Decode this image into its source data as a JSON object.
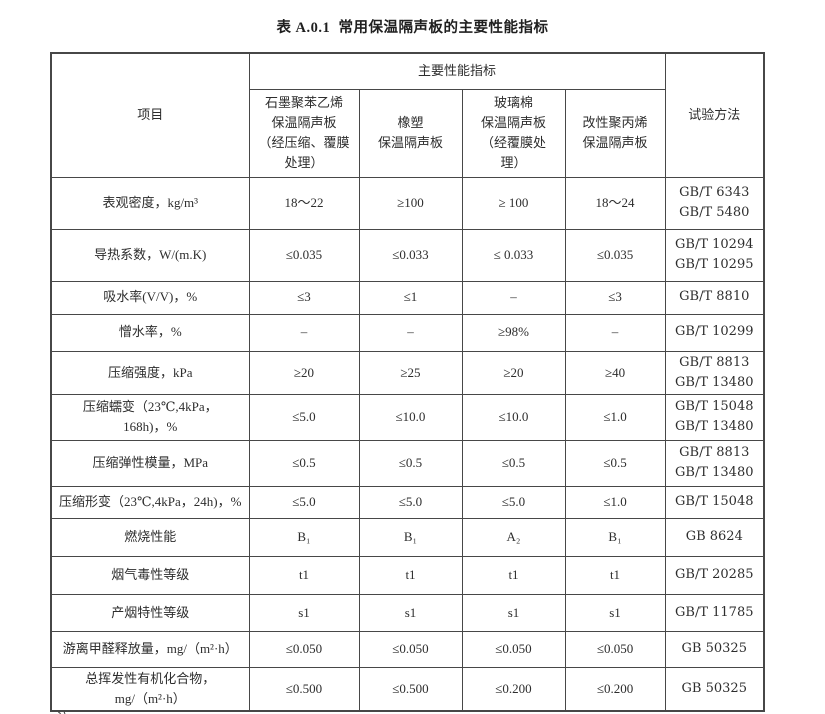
{
  "page": {
    "title": "表 A.0.1  常用保温隔声板的主要性能指标",
    "note_partial": "注"
  },
  "colors": {
    "border": "#474747",
    "text": "#2d2d2d",
    "background": "#ffffff"
  },
  "table": {
    "header": {
      "item_col": "项目",
      "group": "主要性能指标",
      "method_col": "试验方法",
      "products": [
        "石墨聚苯乙烯\n保温隔声板\n（经压缩、覆膜\n处理）",
        "橡塑\n保温隔声板",
        "玻璃棉\n保温隔声板\n（经覆膜处\n理）",
        "改性聚丙烯\n保温隔声板"
      ]
    },
    "rows": [
      {
        "item": "表观密度，kg/m³",
        "values": [
          "18～22",
          "≥100",
          "≥ 100",
          "18～24"
        ],
        "method": "GB/T 6343\nGB/T 5480"
      },
      {
        "item": "导热系数，W/(m.K)",
        "values": [
          "≤0.035",
          "≤0.033",
          "≤ 0.033",
          "≤0.035"
        ],
        "method": "GB/T 10294\nGB/T 10295"
      },
      {
        "item": "吸水率(V/V)，%",
        "values": [
          "≤3",
          "≤1",
          "–",
          "≤3"
        ],
        "method": "GB/T 8810"
      },
      {
        "item": "憎水率，%",
        "values": [
          "–",
          "–",
          "≥98%",
          "–"
        ],
        "method": "GB/T 10299"
      },
      {
        "item": "压缩强度，kPa",
        "values": [
          "≥20",
          "≥25",
          "≥20",
          "≥40"
        ],
        "method": "GB/T 8813\nGB/T 13480"
      },
      {
        "item": "压缩蠕变（23℃,4kPa，\n168h)，%",
        "values": [
          "≤5.0",
          "≤10.0",
          "≤10.0",
          "≤1.0"
        ],
        "method": "GB/T 15048\nGB/T 13480"
      },
      {
        "item": "压缩弹性模量，MPa",
        "values": [
          "≤0.5",
          "≤0.5",
          "≤0.5",
          "≤0.5"
        ],
        "method": "GB/T 8813\nGB/T 13480"
      },
      {
        "item": "压缩形变（23℃,4kPa，24h)，%",
        "values": [
          "≤5.0",
          "≤5.0",
          "≤5.0",
          "≤1.0"
        ],
        "method": "GB/T 15048"
      },
      {
        "item": "燃烧性能",
        "values": [
          "B₁",
          "B₁",
          "A₂",
          "B₁"
        ],
        "method": "GB 8624"
      },
      {
        "item": "烟气毒性等级",
        "values": [
          "t1",
          "t1",
          "t1",
          "t1"
        ],
        "method": "GB/T 20285"
      },
      {
        "item": "产烟特性等级",
        "values": [
          "s1",
          "s1",
          "s1",
          "s1"
        ],
        "method": "GB/T 11785"
      },
      {
        "item": "游离甲醛释放量，mg/（m²·h）",
        "values": [
          "≤0.050",
          "≤0.050",
          "≤0.050",
          "≤0.050"
        ],
        "method": "GB 50325"
      },
      {
        "item": "总挥发性有机化合物，\nmg/（m²·h）",
        "values": [
          "≤0.500",
          "≤0.500",
          "≤0.200",
          "≤0.200"
        ],
        "method": "GB 50325"
      }
    ]
  }
}
